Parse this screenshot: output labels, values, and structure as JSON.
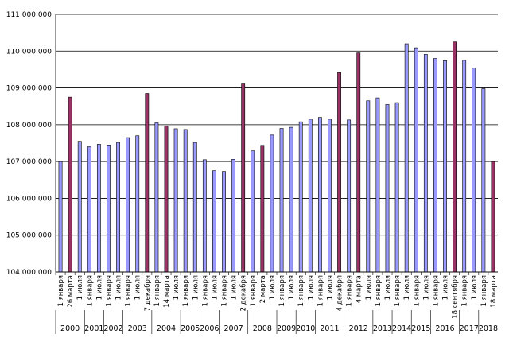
{
  "chart_data": {
    "type": "bar",
    "ylim": [
      104000000,
      111000000
    ],
    "yticks": [
      "104 000 000",
      "105 000 000",
      "106 000 000",
      "107 000 000",
      "108 000 000",
      "109 000 000",
      "110 000 000",
      "111 000 000"
    ],
    "ytick_values": [
      104000000,
      105000000,
      106000000,
      107000000,
      108000000,
      109000000,
      110000000,
      111000000
    ],
    "grid": true,
    "colors": {
      "regular": "#9999ff",
      "election": "#993366",
      "edge": "#000000",
      "grid": "#000000"
    },
    "categories": [
      "1 января",
      "26 марта",
      "1 июля",
      "1 января",
      "1 июля",
      "1 января",
      "1 июля",
      "1 января",
      "1 июля",
      "7 декабря",
      "1 января",
      "14 марта",
      "1 июля",
      "1 января",
      "1 июля",
      "1 января",
      "1 июля",
      "1 января",
      "1 июля",
      "2 декабря",
      "1 января",
      "2 марта",
      "1 июля",
      "1 января",
      "1 июля",
      "1 января",
      "1 июля",
      "1 января",
      "1 июля",
      "4 декабря",
      "1 января",
      "4 марта",
      "1 июля",
      "1 января",
      "1 июля",
      "1 января",
      "1 июля",
      "1 января",
      "1 июля",
      "1 января",
      "1 июля",
      "18 сентября",
      "1 января",
      "1 июля",
      "1 января",
      "18 марта"
    ],
    "values": [
      107000000,
      108750000,
      107550000,
      107400000,
      107470000,
      107450000,
      107520000,
      107650000,
      107700000,
      108850000,
      108050000,
      107970000,
      107890000,
      107870000,
      107520000,
      107050000,
      106750000,
      106730000,
      107060000,
      109130000,
      107290000,
      107440000,
      107720000,
      107900000,
      107930000,
      108080000,
      108150000,
      108200000,
      108150000,
      109420000,
      108130000,
      109950000,
      108650000,
      108730000,
      108550000,
      108600000,
      110200000,
      110090000,
      109910000,
      109800000,
      109740000,
      110250000,
      109750000,
      109540000,
      108980000,
      107000000
    ],
    "election_flags": [
      0,
      1,
      0,
      0,
      0,
      0,
      0,
      0,
      0,
      1,
      0,
      1,
      0,
      0,
      0,
      0,
      0,
      0,
      0,
      1,
      0,
      1,
      0,
      0,
      0,
      0,
      0,
      0,
      0,
      1,
      0,
      1,
      0,
      0,
      0,
      0,
      0,
      0,
      0,
      0,
      0,
      1,
      0,
      0,
      0,
      1
    ],
    "years": [
      {
        "label": "2000",
        "start": 0,
        "end": 3
      },
      {
        "label": "2001",
        "start": 3,
        "end": 5
      },
      {
        "label": "2002",
        "start": 5,
        "end": 7
      },
      {
        "label": "2003",
        "start": 7,
        "end": 10
      },
      {
        "label": "2004",
        "start": 10,
        "end": 13
      },
      {
        "label": "2005",
        "start": 13,
        "end": 15
      },
      {
        "label": "2006",
        "start": 15,
        "end": 17
      },
      {
        "label": "2007",
        "start": 17,
        "end": 20
      },
      {
        "label": "2008",
        "start": 20,
        "end": 23
      },
      {
        "label": "2009",
        "start": 23,
        "end": 25
      },
      {
        "label": "2010",
        "start": 25,
        "end": 27
      },
      {
        "label": "2011",
        "start": 27,
        "end": 30
      },
      {
        "label": "2012",
        "start": 30,
        "end": 33
      },
      {
        "label": "2013",
        "start": 33,
        "end": 35
      },
      {
        "label": "2014",
        "start": 35,
        "end": 37
      },
      {
        "label": "2015",
        "start": 37,
        "end": 39
      },
      {
        "label": "2016",
        "start": 39,
        "end": 42
      },
      {
        "label": "2017",
        "start": 42,
        "end": 44
      },
      {
        "label": "2018",
        "start": 44,
        "end": 46
      }
    ]
  }
}
